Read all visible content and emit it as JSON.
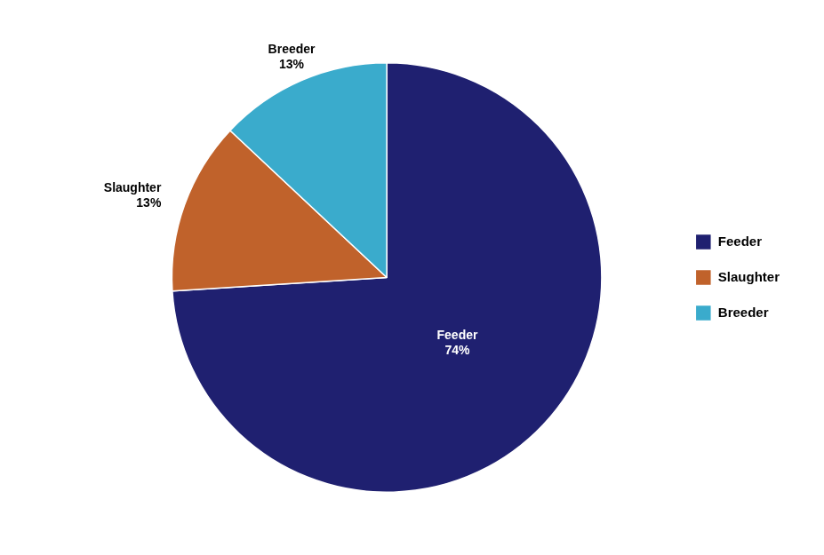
{
  "chart_data": {
    "type": "pie",
    "categories": [
      "Feeder",
      "Slaughter",
      "Breeder"
    ],
    "values": [
      74,
      13,
      13
    ],
    "value_labels": [
      "74%",
      "13%",
      "13%"
    ],
    "colors": [
      "#1f2070",
      "#c0622b",
      "#3aabcc"
    ],
    "data_labels": true,
    "legend": "right"
  }
}
